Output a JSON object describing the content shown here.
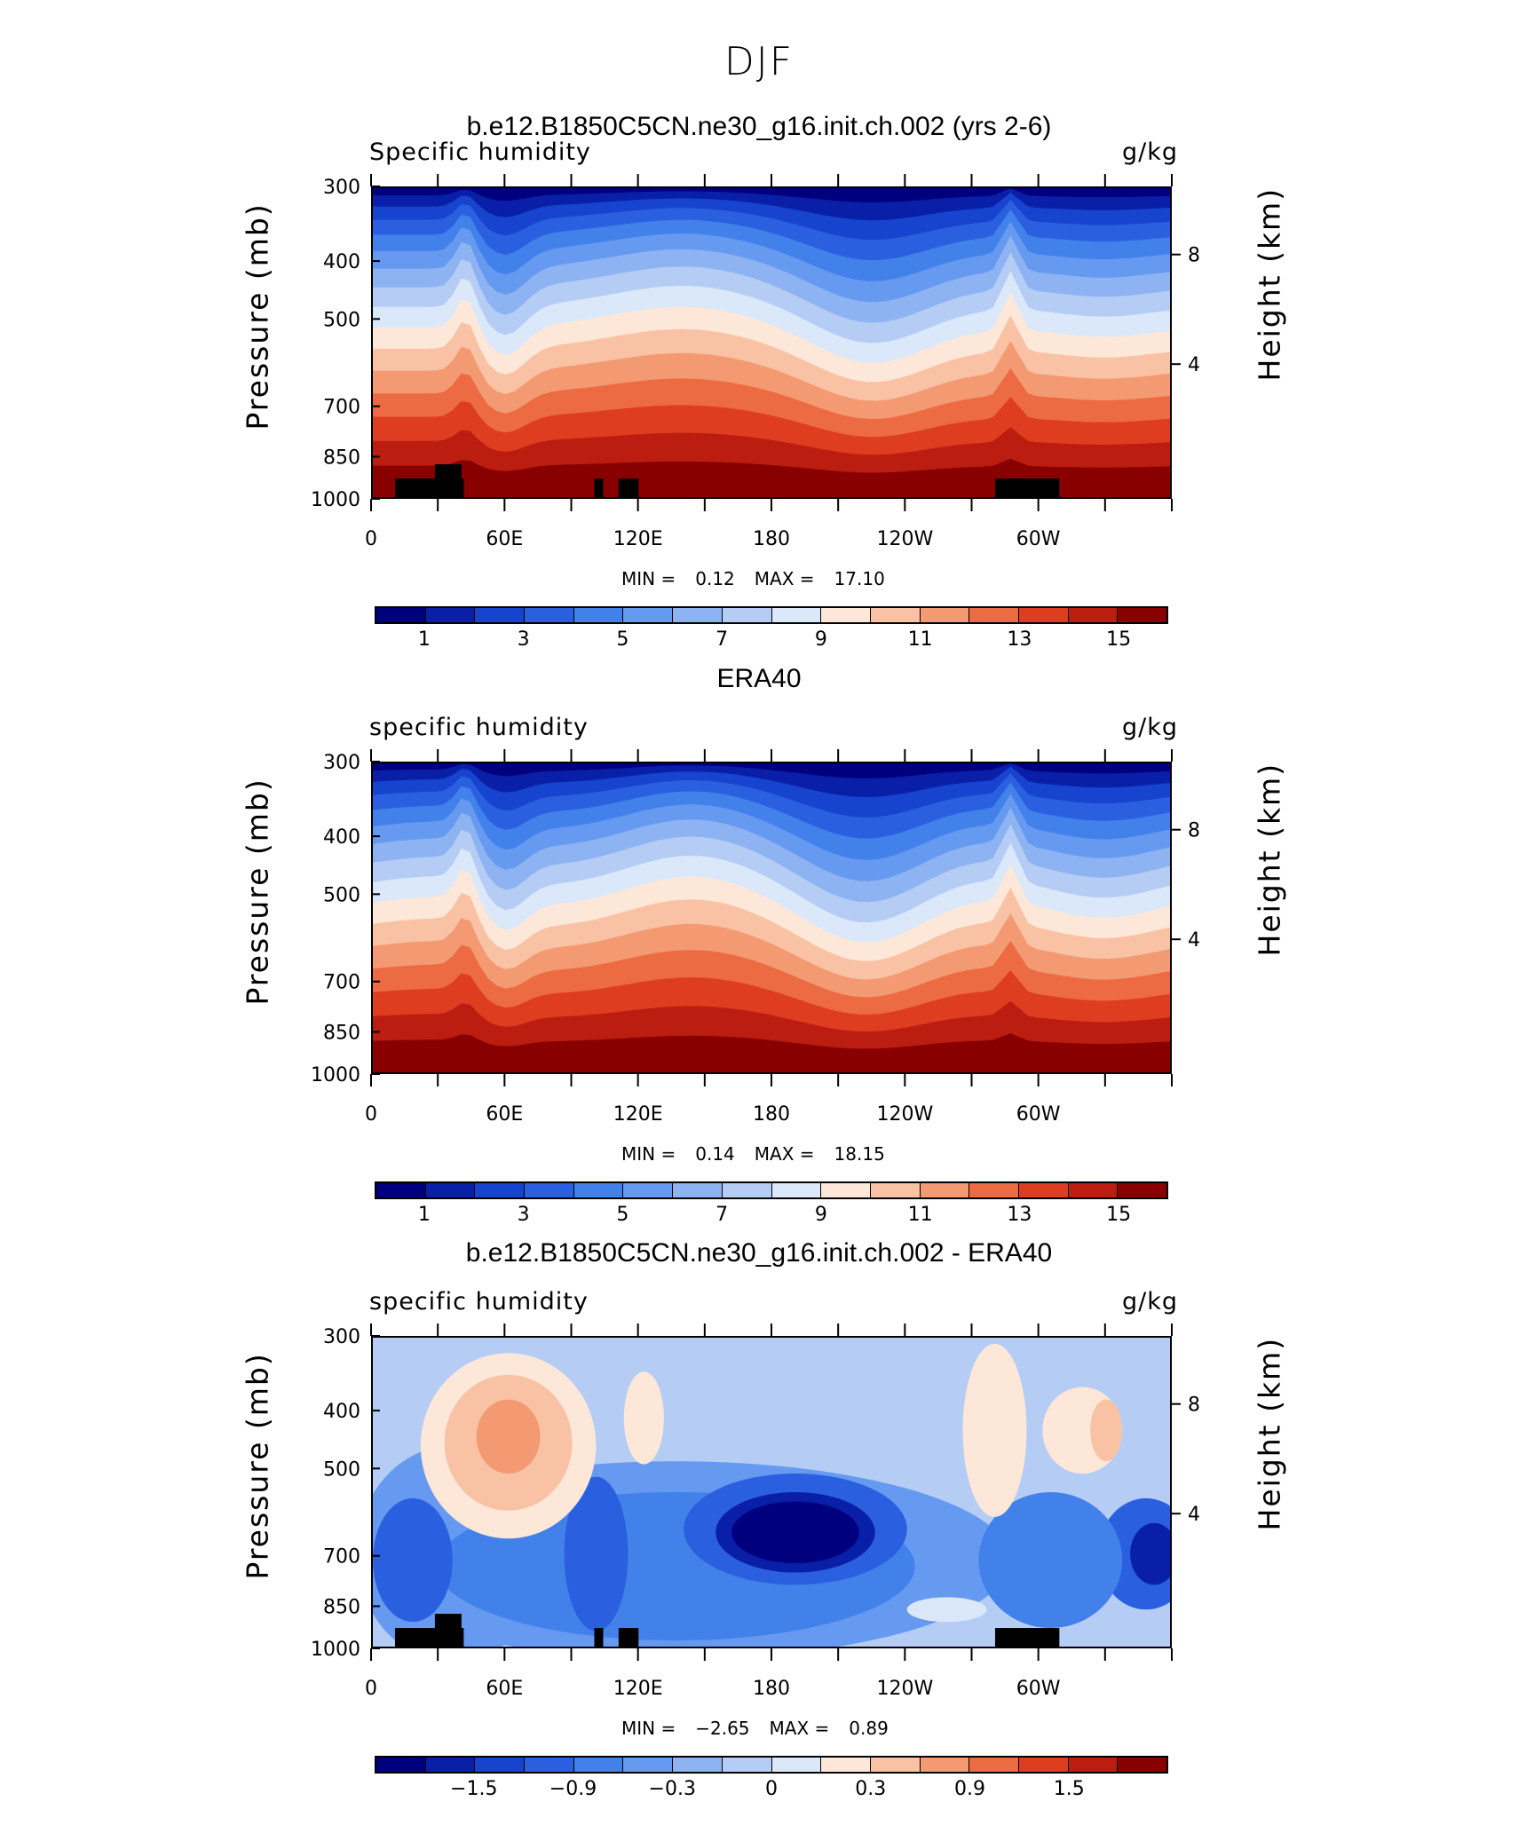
{
  "page": {
    "title": "DJF"
  },
  "panels": [
    {
      "title": "b.e12.B1850C5CN.ne30_g16.init.ch.002 (yrs 2-6)",
      "variable": "Specific humidity",
      "units": "g/kg",
      "ylabel": "Pressure (mb)",
      "ylabel_right": "Height (km)",
      "min_label": "MIN =",
      "min_value": "0.12",
      "max_label": "MAX =",
      "max_value": "17.10",
      "cbar_labels": [
        "1",
        "3",
        "5",
        "7",
        "9",
        "11",
        "13",
        "15"
      ],
      "has_terrain": true,
      "kind": "abs"
    },
    {
      "title": "ERA40",
      "variable": "specific humidity",
      "units": "g/kg",
      "ylabel": "Pressure (mb)",
      "ylabel_right": "Height (km)",
      "min_label": "MIN =",
      "min_value": "0.14",
      "max_label": "MAX =",
      "max_value": "18.15",
      "cbar_labels": [
        "1",
        "3",
        "5",
        "7",
        "9",
        "11",
        "13",
        "15"
      ],
      "has_terrain": false,
      "kind": "abs"
    },
    {
      "title": "b.e12.B1850C5CN.ne30_g16.init.ch.002 - ERA40",
      "variable": "specific humidity",
      "units": "g/kg",
      "ylabel": "Pressure (mb)",
      "ylabel_right": "Height (km)",
      "min_label": "MIN =",
      "min_value": "−2.65",
      "max_label": "MAX =",
      "max_value": "0.89",
      "cbar_labels": [
        "−1.5",
        "−0.9",
        "−0.3",
        "0",
        "0.3",
        "0.9",
        "1.5"
      ],
      "has_terrain": true,
      "kind": "diff"
    }
  ],
  "chart_data": [
    {
      "type": "heatmap",
      "title": "b.e12.B1850C5CN.ne30_g16.init.ch.002 (yrs 2-6)",
      "subtitle": "Specific humidity",
      "units": "g/kg",
      "ylabel": "Pressure (mb)",
      "ylabel_right": "Height (km)",
      "x_ticks": [
        "0",
        "60E",
        "120E",
        "180",
        "120W",
        "60W"
      ],
      "x_range": [
        0,
        360
      ],
      "y_ticks": [
        300,
        400,
        500,
        700,
        850,
        1000
      ],
      "y_range": [
        300,
        1000
      ],
      "y_scale": "log",
      "y_right_ticks": [
        8,
        4
      ],
      "min": 0.12,
      "max": 17.1,
      "levels": [
        1,
        2,
        3,
        4,
        5,
        6,
        7,
        8,
        9,
        10,
        11,
        12,
        13,
        14,
        15
      ],
      "colorbar_labels": [
        1,
        3,
        5,
        7,
        9,
        11,
        13,
        15
      ]
    },
    {
      "type": "heatmap",
      "title": "ERA40",
      "subtitle": "specific humidity",
      "units": "g/kg",
      "ylabel": "Pressure (mb)",
      "ylabel_right": "Height (km)",
      "x_ticks": [
        "0",
        "60E",
        "120E",
        "180",
        "120W",
        "60W"
      ],
      "x_range": [
        0,
        360
      ],
      "y_ticks": [
        300,
        400,
        500,
        700,
        850,
        1000
      ],
      "y_range": [
        300,
        1000
      ],
      "y_scale": "log",
      "y_right_ticks": [
        8,
        4
      ],
      "min": 0.14,
      "max": 18.15,
      "levels": [
        1,
        2,
        3,
        4,
        5,
        6,
        7,
        8,
        9,
        10,
        11,
        12,
        13,
        14,
        15
      ],
      "colorbar_labels": [
        1,
        3,
        5,
        7,
        9,
        11,
        13,
        15
      ]
    },
    {
      "type": "heatmap",
      "title": "b.e12.B1850C5CN.ne30_g16.init.ch.002 - ERA40",
      "subtitle": "specific humidity",
      "units": "g/kg",
      "ylabel": "Pressure (mb)",
      "ylabel_right": "Height (km)",
      "x_ticks": [
        "0",
        "60E",
        "120E",
        "180",
        "120W",
        "60W"
      ],
      "x_range": [
        0,
        360
      ],
      "y_ticks": [
        300,
        400,
        500,
        700,
        850,
        1000
      ],
      "y_range": [
        300,
        1000
      ],
      "y_scale": "log",
      "y_right_ticks": [
        8,
        4
      ],
      "min": -2.65,
      "max": 0.89,
      "levels": [
        -1.8,
        -1.5,
        -1.2,
        -0.9,
        -0.6,
        -0.3,
        -0.1,
        0,
        0.1,
        0.3,
        0.6,
        0.9,
        1.2,
        1.5,
        1.8
      ],
      "colorbar_labels": [
        -1.5,
        -0.9,
        -0.3,
        0,
        0.3,
        0.9,
        1.5
      ]
    }
  ],
  "colormap": [
    "#00007f",
    "#0a1fa8",
    "#1644cf",
    "#2a60e0",
    "#4280ea",
    "#6699f0",
    "#8db3f2",
    "#b5cdf5",
    "#dbe8fa",
    "#fde7d8",
    "#f9c2a4",
    "#f39a72",
    "#ec6b42",
    "#de3d20",
    "#bb1d10",
    "#880000"
  ]
}
